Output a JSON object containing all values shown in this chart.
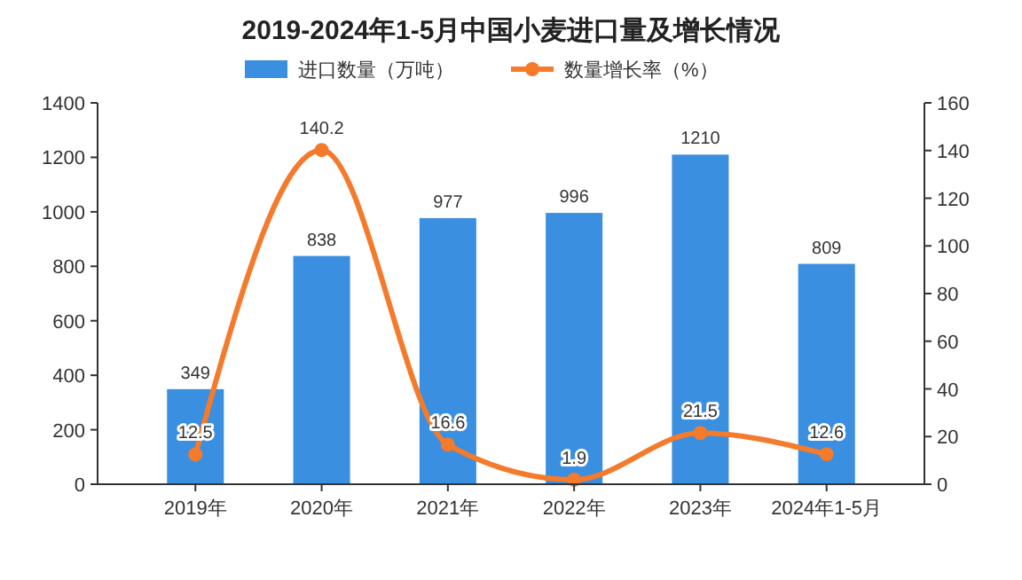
{
  "chart_data": {
    "type": "bar",
    "title": "2019-2024年1-5月中国小麦进口量及增长情况",
    "categories": [
      "2019年",
      "2020年",
      "2021年",
      "2022年",
      "2023年",
      "2024年1-5月"
    ],
    "series": [
      {
        "name": "进口数量（万吨）",
        "color": "#3b8fe0",
        "values": [
          349,
          838,
          977,
          996,
          1210,
          809
        ]
      },
      {
        "name": "数量增长率（%）",
        "type": "line",
        "axis": "y2",
        "color": "#f47a2c",
        "marker": "circle",
        "values": [
          12.5,
          140.2,
          16.6,
          1.9,
          21.5,
          12.6
        ]
      }
    ],
    "ylim": [
      0,
      1400
    ],
    "yticks": [
      0,
      200,
      400,
      600,
      800,
      1000,
      1200,
      1400
    ],
    "y2lim": [
      0,
      160
    ],
    "y2ticks": [
      0,
      20,
      40,
      60,
      80,
      100,
      120,
      140,
      160
    ],
    "legend": "top",
    "data_labels": true
  }
}
